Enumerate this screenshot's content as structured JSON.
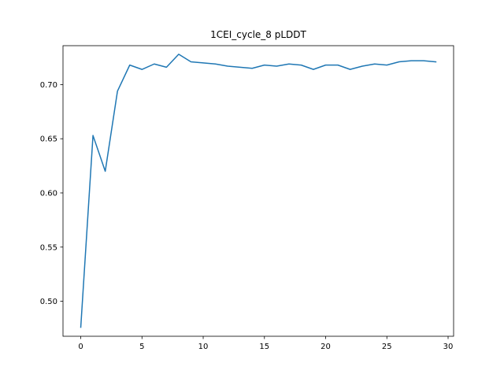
{
  "chart_data": {
    "type": "line",
    "title": "1CEI_cycle_8 pLDDT",
    "xlabel": "",
    "ylabel": "",
    "xlim": [
      -1.45,
      30.45
    ],
    "ylim": [
      0.4677,
      0.7359
    ],
    "xticks": [
      0,
      5,
      10,
      15,
      20,
      25,
      30
    ],
    "yticks": [
      0.5,
      0.55,
      0.6,
      0.65,
      0.7
    ],
    "grid": false,
    "series": [
      {
        "color": "#1f77b4",
        "x": [
          0,
          1,
          2,
          3,
          4,
          5,
          6,
          7,
          8,
          9,
          10,
          11,
          12,
          13,
          14,
          15,
          16,
          17,
          18,
          19,
          20,
          21,
          22,
          23,
          24,
          25,
          26,
          27,
          28,
          29
        ],
        "values": [
          0.476,
          0.653,
          0.62,
          0.694,
          0.718,
          0.714,
          0.719,
          0.716,
          0.728,
          0.721,
          0.72,
          0.719,
          0.717,
          0.716,
          0.715,
          0.718,
          0.717,
          0.719,
          0.718,
          0.714,
          0.718,
          0.718,
          0.714,
          0.717,
          0.719,
          0.718,
          0.721,
          0.722,
          0.722,
          0.721
        ]
      }
    ]
  }
}
